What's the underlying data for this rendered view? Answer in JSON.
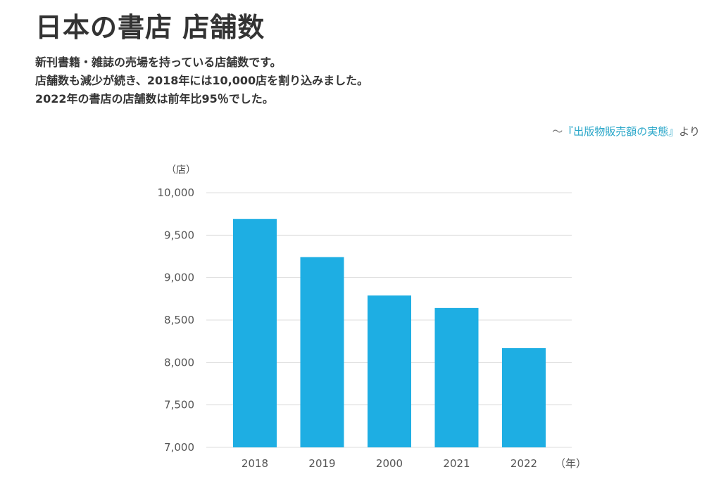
{
  "header": {
    "title": "日本の書店 店舗数",
    "description": [
      "新刊書籍・雑誌の売場を持っている店舗数です。",
      "店舗数も減少が続き、2018年には10,000店を割り込みました。",
      "2022年の書店の店舗数は前年比95％でした。"
    ]
  },
  "source": {
    "prefix": "～",
    "link_label": "『出版物販売額の実態』",
    "suffix": "より"
  },
  "colors": {
    "bar": "#1eaee3",
    "grid": "#dddddd",
    "axis_text": "#555555",
    "link": "#2aa7c9"
  },
  "chart_data": {
    "type": "bar",
    "categories": [
      "2018",
      "2019",
      "2000",
      "2021",
      "2022"
    ],
    "values": [
      9692,
      9242,
      8789,
      8642,
      8169
    ],
    "ylim": [
      7000,
      10000
    ],
    "yticks": [
      7000,
      7500,
      8000,
      8500,
      9000,
      9500,
      10000
    ],
    "ytick_labels": [
      "7,000",
      "7,500",
      "8,000",
      "8,500",
      "9,000",
      "9,500",
      "10,000"
    ],
    "ylabel": "（店）",
    "xlabel": "（年）",
    "grid": true
  }
}
